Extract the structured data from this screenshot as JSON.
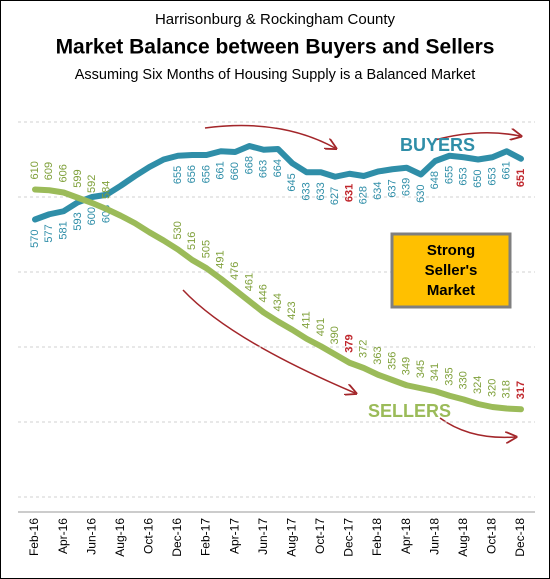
{
  "chart_data": {
    "type": "line",
    "title": "Market Balance between Buyers and Sellers",
    "supertitle": "Harrisonburg & Rockingham County",
    "subtitle": "Assuming Six Months of Housing Supply is a Balanced Market",
    "categories": [
      "Feb-16",
      null,
      "Apr-16",
      null,
      "Jun-16",
      null,
      "Aug-16",
      null,
      "Oct-16",
      null,
      "Dec-16",
      null,
      "Feb-17",
      null,
      "Apr-17",
      null,
      "Jun-17",
      null,
      "Aug-17",
      null,
      "Oct-17",
      null,
      "Dec-17",
      null,
      "Feb-18",
      null,
      "Apr-18",
      null,
      "Jun-18",
      null,
      "Aug-18",
      null,
      "Oct-18",
      null,
      "Dec-18"
    ],
    "series": [
      {
        "name": "BUYERS",
        "color": "#2f8ea8",
        "values": [
          570,
          577,
          581,
          593,
          600,
          603,
          615,
          628,
          640,
          650,
          655,
          656,
          656,
          661,
          660,
          668,
          663,
          664,
          645,
          633,
          633,
          627,
          631,
          628,
          634,
          637,
          639,
          630,
          648,
          655,
          653,
          650,
          653,
          661,
          651
        ],
        "value_labels": [
          "570",
          "577",
          "581",
          "593",
          "600",
          "603",
          null,
          null,
          null,
          null,
          "655",
          "656",
          "656",
          "661",
          "660",
          "668",
          "663",
          "664",
          "645",
          "633",
          "633",
          "627",
          "631",
          "628",
          "634",
          "637",
          "639",
          "630",
          "648",
          "655",
          "653",
          "650",
          "653",
          "661",
          "651"
        ]
      },
      {
        "name": "SELLERS",
        "color": "#9bbb59",
        "values": [
          610,
          609,
          606,
          599,
          592,
          584,
          575,
          565,
          553,
          542,
          530,
          516,
          505,
          491,
          476,
          461,
          446,
          434,
          423,
          411,
          401,
          390,
          379,
          372,
          363,
          356,
          349,
          345,
          341,
          335,
          330,
          324,
          320,
          318,
          317
        ],
        "value_labels": [
          "610",
          "609",
          "606",
          "599",
          "592",
          "584",
          null,
          null,
          null,
          null,
          "530",
          "516",
          "505",
          "491",
          "476",
          "461",
          "446",
          "434",
          "423",
          "411",
          "401",
          "390",
          "379",
          "372",
          "363",
          "356",
          "349",
          "345",
          "341",
          "335",
          "330",
          "324",
          "320",
          "318",
          "317"
        ]
      }
    ],
    "highlight": [
      22,
      34
    ],
    "highlight_color": "#c0272d",
    "annotation": [
      "Strong",
      "Seller's",
      "Market"
    ],
    "annotation_color": "#ffc000",
    "ylim": [
      180,
      760
    ],
    "yticks": [
      200,
      300,
      400,
      500,
      600,
      700
    ],
    "grid": true
  }
}
